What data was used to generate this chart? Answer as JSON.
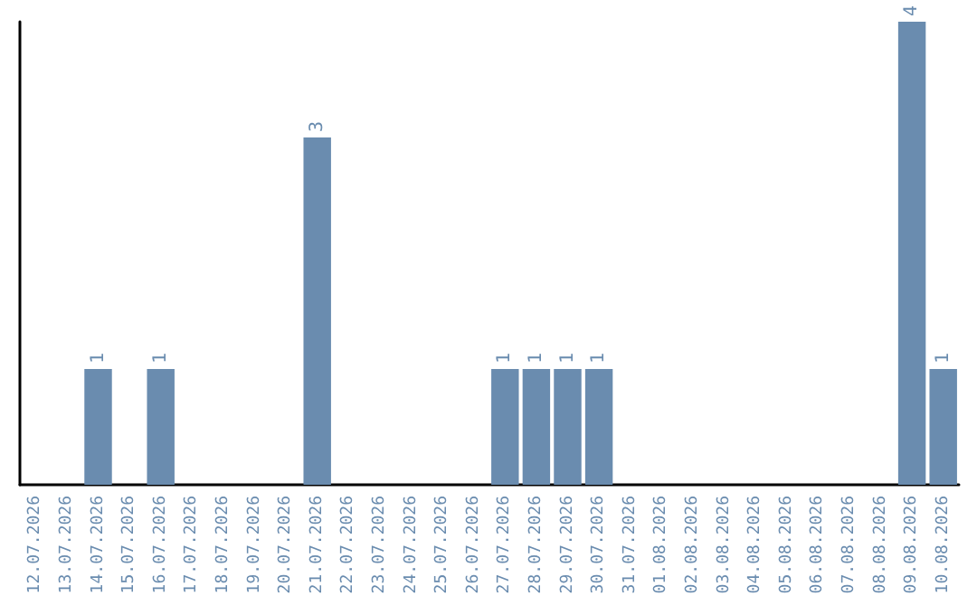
{
  "chart_data": {
    "type": "bar",
    "categories": [
      "12.07.2026",
      "13.07.2026",
      "14.07.2026",
      "15.07.2026",
      "16.07.2026",
      "17.07.2026",
      "18.07.2026",
      "19.07.2026",
      "20.07.2026",
      "21.07.2026",
      "22.07.2026",
      "23.07.2026",
      "24.07.2026",
      "25.07.2026",
      "26.07.2026",
      "27.07.2026",
      "28.07.2026",
      "29.07.2026",
      "30.07.2026",
      "31.07.2026",
      "01.08.2026",
      "02.08.2026",
      "03.08.2026",
      "04.08.2026",
      "05.08.2026",
      "06.08.2026",
      "07.08.2026",
      "08.08.2026",
      "09.08.2026",
      "10.08.2026"
    ],
    "values": [
      0,
      0,
      1,
      0,
      1,
      0,
      0,
      0,
      0,
      3,
      0,
      0,
      0,
      0,
      0,
      1,
      1,
      1,
      1,
      0,
      0,
      0,
      0,
      0,
      0,
      0,
      0,
      0,
      4,
      1
    ],
    "value_labels": [
      null,
      null,
      "1",
      null,
      "1",
      null,
      null,
      null,
      null,
      "3",
      null,
      null,
      null,
      null,
      null,
      "1",
      "1",
      "1",
      "1",
      null,
      null,
      null,
      null,
      null,
      null,
      null,
      null,
      null,
      "4",
      "1"
    ],
    "color": "#6a8caf",
    "grid": false,
    "tick_labels": "x"
  }
}
